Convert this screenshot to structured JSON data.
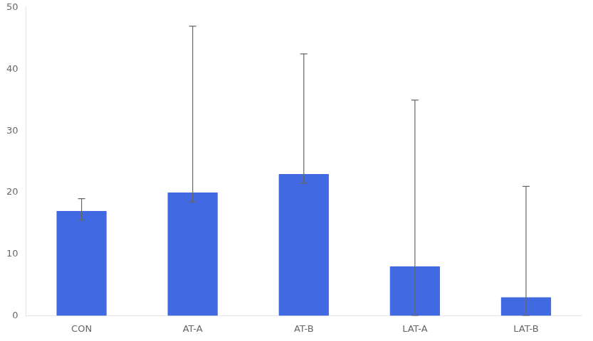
{
  "chart_data": {
    "type": "bar",
    "categories": [
      "CON",
      "AT-A",
      "AT-B",
      "LAT-A",
      "LAT-B"
    ],
    "values": [
      17.0,
      20.0,
      23.0,
      8.0,
      3.0
    ],
    "yerr_lower": [
      1.5,
      1.5,
      1.5,
      8.0,
      3.0
    ],
    "yerr_upper": [
      2.0,
      27.0,
      19.5,
      27.0,
      18.0
    ],
    "color": "#4169E1",
    "ylim": [
      0,
      50
    ],
    "yticks": [
      0,
      10,
      20,
      30,
      40,
      50
    ],
    "grid": false
  }
}
